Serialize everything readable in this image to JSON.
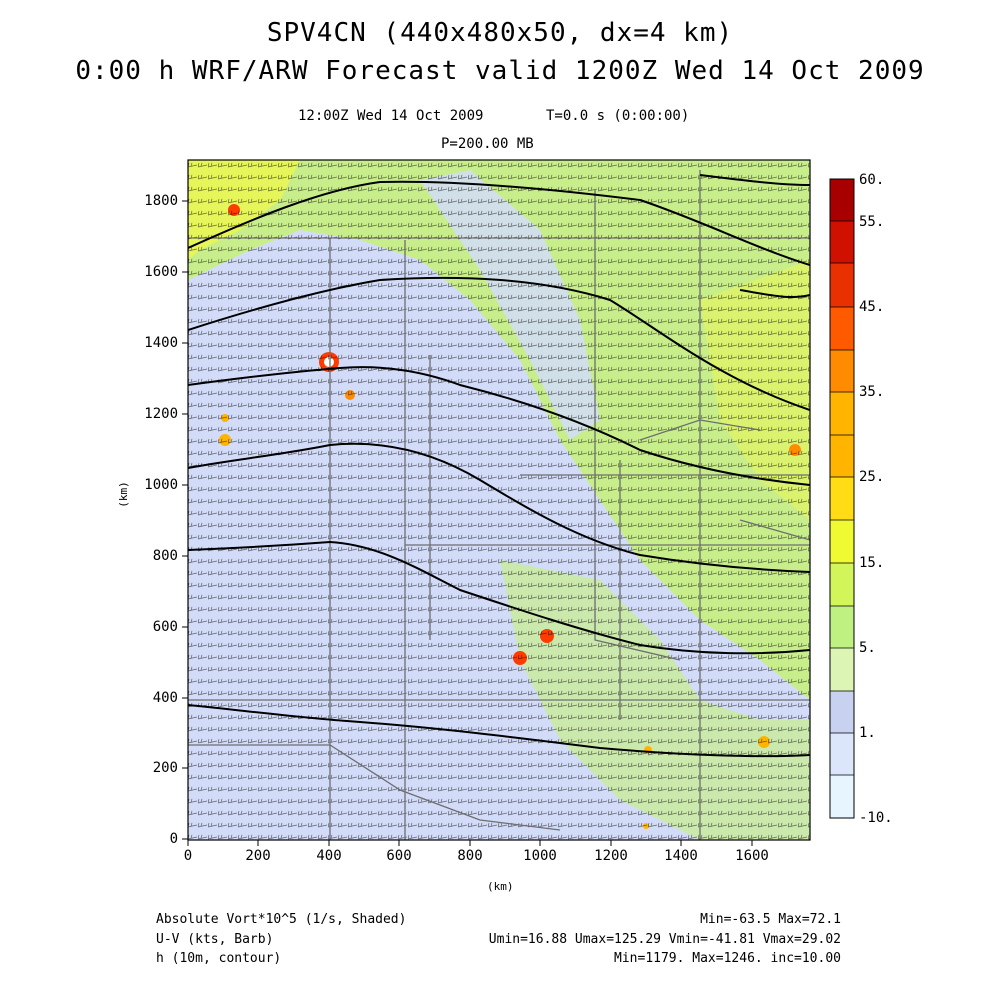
{
  "title": {
    "line1": "SPV4CN (440x480x50, dx=4 km)",
    "line2": "0:00 h WRF/ARW Forecast valid 1200Z Wed 14 Oct 2009"
  },
  "subtitle": {
    "valid_time": "12:00Z Wed 14 Oct 2009",
    "time_step": "T=0.0 s (0:00:00)",
    "pressure": "P=200.00 MB"
  },
  "axes": {
    "xlabel": "(km)",
    "ylabel": "(km)",
    "xlim": [
      0,
      1760
    ],
    "ylim": [
      0,
      1920
    ],
    "x_ticks": [
      "0",
      "200",
      "400",
      "600",
      "800",
      "1000",
      "1200",
      "1400",
      "1600"
    ],
    "y_ticks": [
      "0",
      "200",
      "400",
      "600",
      "800",
      "1000",
      "1200",
      "1400",
      "1600",
      "1800"
    ]
  },
  "colorbar": {
    "labels": [
      "60.",
      "55.",
      "45.",
      "35.",
      "25.",
      "15.",
      "5.",
      "1.",
      "-10."
    ],
    "colors": [
      "#a80000",
      "#d01000",
      "#e83000",
      "#ff5a00",
      "#ff8c00",
      "#ffb400",
      "#ffdc14",
      "#f0fa32",
      "#d2f55a",
      "#bef082",
      "#dcf5b4",
      "#c8d2f0",
      "#dce6fa",
      "#e6f5ff"
    ]
  },
  "footer": {
    "field1": "Absolute Vort*10^5 (1/s, Shaded)",
    "field1_stats": "Min=-63.5 Max=72.1",
    "field2": "U-V (kts, Barb)",
    "field2_stats": "Umin=16.88 Umax=125.29 Vmin=-41.81 Vmax=29.02",
    "field3": "h (10m, contour)",
    "field3_stats": "Min=1179. Max=1246. inc=10.00"
  },
  "map_features": {
    "background_colors": {
      "low_vort": "#d2dcf8",
      "mid_vort": "#c8ee8c",
      "high_vort": "#e6f55a"
    },
    "contour_color": "#000000",
    "boundary_color": "#6e6e6e",
    "barb_color": "#000000",
    "hotspot_colors": [
      "#ff3c00",
      "#ffb400",
      "#b40000"
    ]
  }
}
